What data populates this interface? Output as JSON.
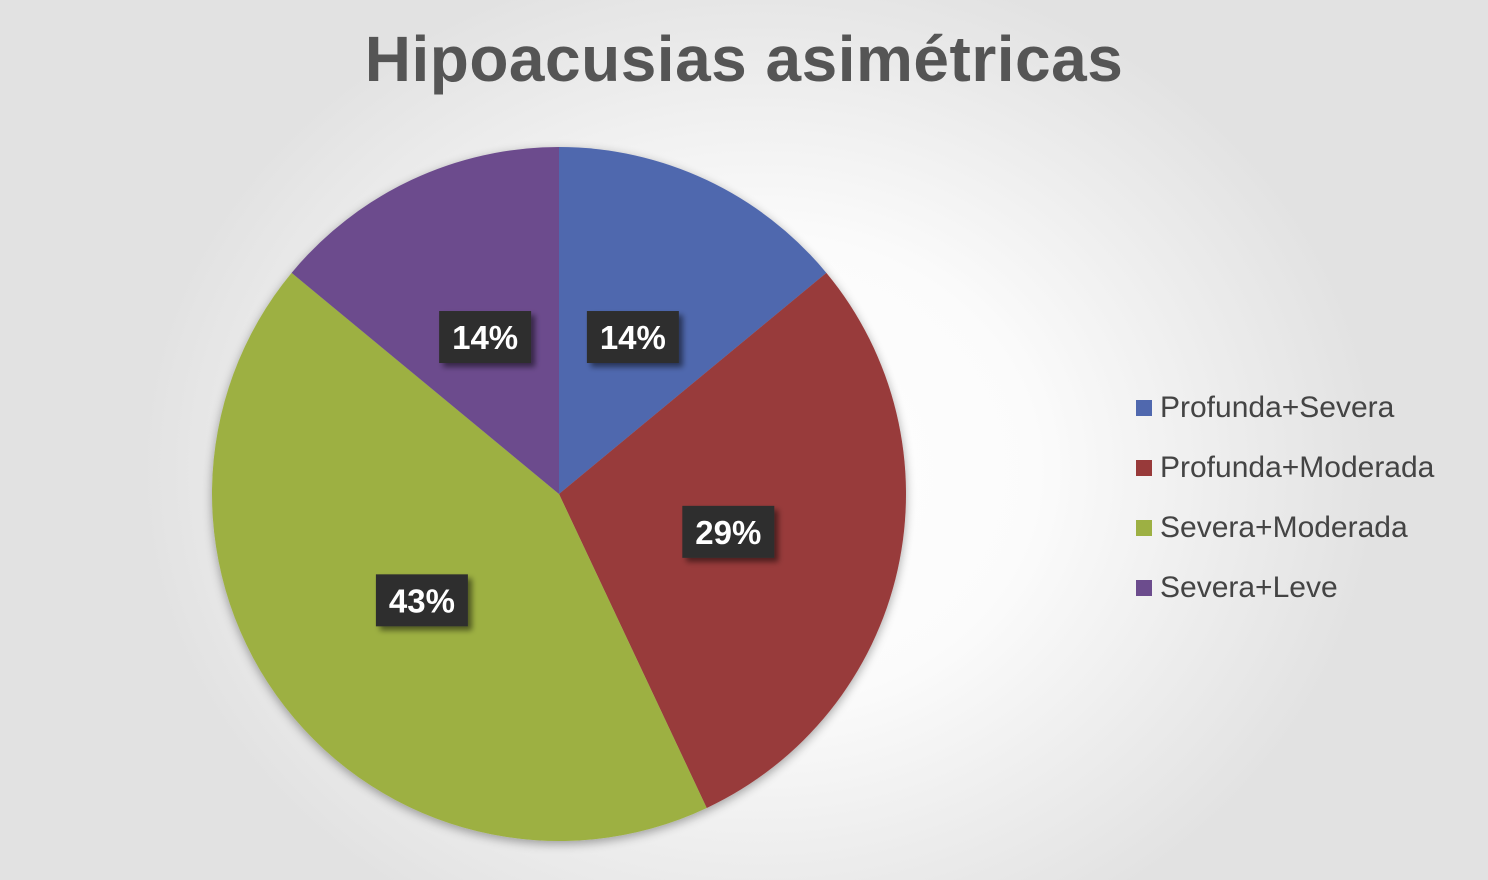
{
  "chart_data": {
    "type": "pie",
    "title": "Hipoacusias asimétricas",
    "categories": [
      "Profunda+Severa",
      "Profunda+Moderada",
      "Severa+Moderada",
      "Severa+Leve"
    ],
    "values": [
      14,
      29,
      43,
      14
    ],
    "data_labels": [
      "14%",
      "29%",
      "43%",
      "14%"
    ],
    "colors": [
      "#5068AE",
      "#983A3A",
      "#9DB043",
      "#6C4C8D"
    ],
    "start_angle": "12 o'clock",
    "direction": "clockwise",
    "legend": {
      "placement": "right",
      "entries": [
        "Profunda+Severa",
        "Profunda+Moderada",
        "Severa+Moderada",
        "Severa+Leve"
      ]
    }
  }
}
